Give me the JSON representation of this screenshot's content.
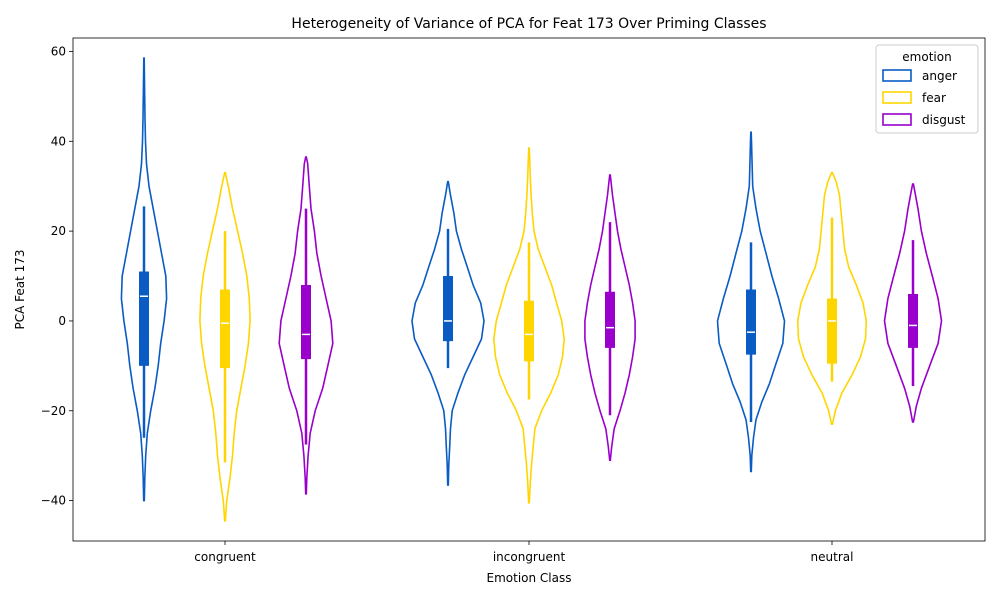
{
  "chart_data": {
    "type": "violin",
    "title": "Heterogeneity of Variance of PCA for Feat 173 Over Priming Classes",
    "xlabel": "Emotion Class",
    "ylabel": "PCA Feat 173",
    "categories": [
      "congruent",
      "incongruent",
      "neutral"
    ],
    "ylim": [
      -49,
      63
    ],
    "yticks": [
      -40,
      -20,
      0,
      20,
      40,
      60
    ],
    "legend": {
      "title": "emotion",
      "placement": "top-right"
    },
    "series": [
      {
        "name": "anger",
        "color": "#0a5bc4",
        "stats": [
          {
            "category": "congruent",
            "min": -40,
            "max": 58.5,
            "whisker_low": -26,
            "whisker_high": 25.5,
            "q1": -10,
            "q3": 11,
            "median": 5.5,
            "density": [
              [
                -40,
                0.3
              ],
              [
                -35,
                1
              ],
              [
                -30,
                2
              ],
              [
                -25,
                4
              ],
              [
                -20,
                8
              ],
              [
                -15,
                13
              ],
              [
                -10,
                17
              ],
              [
                -5,
                20
              ],
              [
                0,
                24
              ],
              [
                5,
                27
              ],
              [
                10,
                26
              ],
              [
                15,
                21
              ],
              [
                20,
                16
              ],
              [
                25,
                11
              ],
              [
                30,
                6
              ],
              [
                35,
                3
              ],
              [
                40,
                1.8
              ],
              [
                45,
                1.2
              ],
              [
                50,
                0.8
              ],
              [
                55,
                0.5
              ],
              [
                58.5,
                0.2
              ]
            ]
          },
          {
            "category": "incongruent",
            "min": -36.5,
            "max": 31,
            "whisker_low": -10.5,
            "whisker_high": 20.5,
            "q1": -4.5,
            "q3": 10,
            "median": 0,
            "density": [
              [
                -36.5,
                0.3
              ],
              [
                -32,
                1
              ],
              [
                -28,
                2
              ],
              [
                -24,
                3
              ],
              [
                -20,
                5
              ],
              [
                -16,
                12
              ],
              [
                -12,
                20
              ],
              [
                -8,
                30
              ],
              [
                -4,
                40
              ],
              [
                0,
                43
              ],
              [
                4,
                39
              ],
              [
                8,
                30
              ],
              [
                12,
                23
              ],
              [
                16,
                16
              ],
              [
                20,
                10
              ],
              [
                24,
                7
              ],
              [
                28,
                3
              ],
              [
                31,
                0.3
              ]
            ]
          },
          {
            "category": "neutral",
            "min": -33.5,
            "max": 42,
            "whisker_low": -22.5,
            "whisker_high": 17.5,
            "q1": -7.5,
            "q3": 7,
            "median": -2.5,
            "density": [
              [
                -33.5,
                0.3
              ],
              [
                -30,
                1
              ],
              [
                -26,
                3
              ],
              [
                -22,
                6
              ],
              [
                -18,
                13
              ],
              [
                -14,
                22
              ],
              [
                -10,
                29
              ],
              [
                -5,
                38
              ],
              [
                0,
                40
              ],
              [
                5,
                33
              ],
              [
                10,
                25
              ],
              [
                15,
                18
              ],
              [
                20,
                11
              ],
              [
                25,
                6
              ],
              [
                30,
                2
              ],
              [
                35,
                1.3
              ],
              [
                40,
                0.6
              ],
              [
                42,
                0.2
              ]
            ]
          }
        ]
      },
      {
        "name": "fear",
        "color": "#ffd500",
        "stats": [
          {
            "category": "congruent",
            "min": -44.5,
            "max": 33,
            "whisker_low": -31.5,
            "whisker_high": 20,
            "q1": -10.5,
            "q3": 7,
            "median": -0.5,
            "density": [
              [
                -44.5,
                0.3
              ],
              [
                -40,
                2
              ],
              [
                -35,
                6
              ],
              [
                -30,
                9
              ],
              [
                -25,
                11
              ],
              [
                -20,
                14
              ],
              [
                -15,
                19
              ],
              [
                -10,
                24
              ],
              [
                -5,
                28
              ],
              [
                0,
                30
              ],
              [
                5,
                29
              ],
              [
                10,
                26
              ],
              [
                15,
                21
              ],
              [
                20,
                15
              ],
              [
                25,
                9
              ],
              [
                30,
                4
              ],
              [
                33,
                0.3
              ]
            ]
          },
          {
            "category": "incongruent",
            "min": -40.5,
            "max": 38.5,
            "whisker_low": -17.5,
            "whisker_high": 17.5,
            "q1": -9,
            "q3": 4.5,
            "median": -3,
            "density": [
              [
                -40.5,
                0.3
              ],
              [
                -36,
                1.5
              ],
              [
                -32,
                3
              ],
              [
                -28,
                5
              ],
              [
                -24,
                7
              ],
              [
                -20,
                15
              ],
              [
                -16,
                26
              ],
              [
                -12,
                35
              ],
              [
                -8,
                40
              ],
              [
                -4,
                42
              ],
              [
                0,
                39
              ],
              [
                4,
                33
              ],
              [
                8,
                27
              ],
              [
                12,
                19
              ],
              [
                16,
                11
              ],
              [
                20,
                6
              ],
              [
                24,
                4
              ],
              [
                28,
                2.5
              ],
              [
                32,
                1.5
              ],
              [
                36,
                0.8
              ],
              [
                38.5,
                0.2
              ]
            ]
          },
          {
            "category": "neutral",
            "min": -23,
            "max": 33,
            "whisker_low": -13.5,
            "whisker_high": 23,
            "q1": -9.5,
            "q3": 5,
            "median": 0,
            "density": [
              [
                -23,
                0.5
              ],
              [
                -20,
                4
              ],
              [
                -16,
                12
              ],
              [
                -12,
                24
              ],
              [
                -8,
                34
              ],
              [
                -4,
                40
              ],
              [
                0,
                41
              ],
              [
                4,
                37
              ],
              [
                8,
                29
              ],
              [
                12,
                20
              ],
              [
                16,
                15
              ],
              [
                20,
                13
              ],
              [
                24,
                11
              ],
              [
                28,
                9
              ],
              [
                31,
                5
              ],
              [
                33,
                0.5
              ]
            ]
          }
        ]
      },
      {
        "name": "disgust",
        "color": "#9900cc",
        "stats": [
          {
            "category": "congruent",
            "min": -38.5,
            "max": 36.5,
            "whisker_low": -27.5,
            "whisker_high": 25,
            "q1": -8.5,
            "q3": 8,
            "median": -3,
            "density": [
              [
                -38.5,
                0.3
              ],
              [
                -35,
                1
              ],
              [
                -30,
                2.5
              ],
              [
                -25,
                5
              ],
              [
                -20,
                11
              ],
              [
                -15,
                20
              ],
              [
                -10,
                26
              ],
              [
                -5,
                32
              ],
              [
                0,
                30
              ],
              [
                5,
                24
              ],
              [
                10,
                18
              ],
              [
                15,
                13
              ],
              [
                20,
                10
              ],
              [
                25,
                6
              ],
              [
                30,
                4
              ],
              [
                35,
                2
              ],
              [
                36.5,
                0.3
              ]
            ]
          },
          {
            "category": "incongruent",
            "min": -31,
            "max": 32.5,
            "whisker_low": -21,
            "whisker_high": 22,
            "q1": -6,
            "q3": 6.5,
            "median": -1.5,
            "density": [
              [
                -31,
                0.3
              ],
              [
                -28,
                2
              ],
              [
                -24,
                5
              ],
              [
                -20,
                12
              ],
              [
                -16,
                18
              ],
              [
                -12,
                23
              ],
              [
                -8,
                27
              ],
              [
                -4,
                30
              ],
              [
                0,
                30
              ],
              [
                4,
                27
              ],
              [
                8,
                23
              ],
              [
                12,
                18
              ],
              [
                16,
                13
              ],
              [
                20,
                9
              ],
              [
                24,
                6
              ],
              [
                28,
                3
              ],
              [
                32.5,
                0.3
              ]
            ]
          },
          {
            "category": "neutral",
            "min": -22.5,
            "max": 30.5,
            "whisker_low": -14.5,
            "whisker_high": 18,
            "q1": -6,
            "q3": 6,
            "median": -1,
            "density": [
              [
                -22.5,
                0.5
              ],
              [
                -19,
                4
              ],
              [
                -15,
                10
              ],
              [
                -10,
                20
              ],
              [
                -5,
                30
              ],
              [
                0,
                34
              ],
              [
                5,
                30
              ],
              [
                10,
                23
              ],
              [
                15,
                16
              ],
              [
                20,
                10
              ],
              [
                25,
                6
              ],
              [
                28,
                3
              ],
              [
                30.5,
                0.5
              ]
            ]
          }
        ]
      }
    ]
  }
}
